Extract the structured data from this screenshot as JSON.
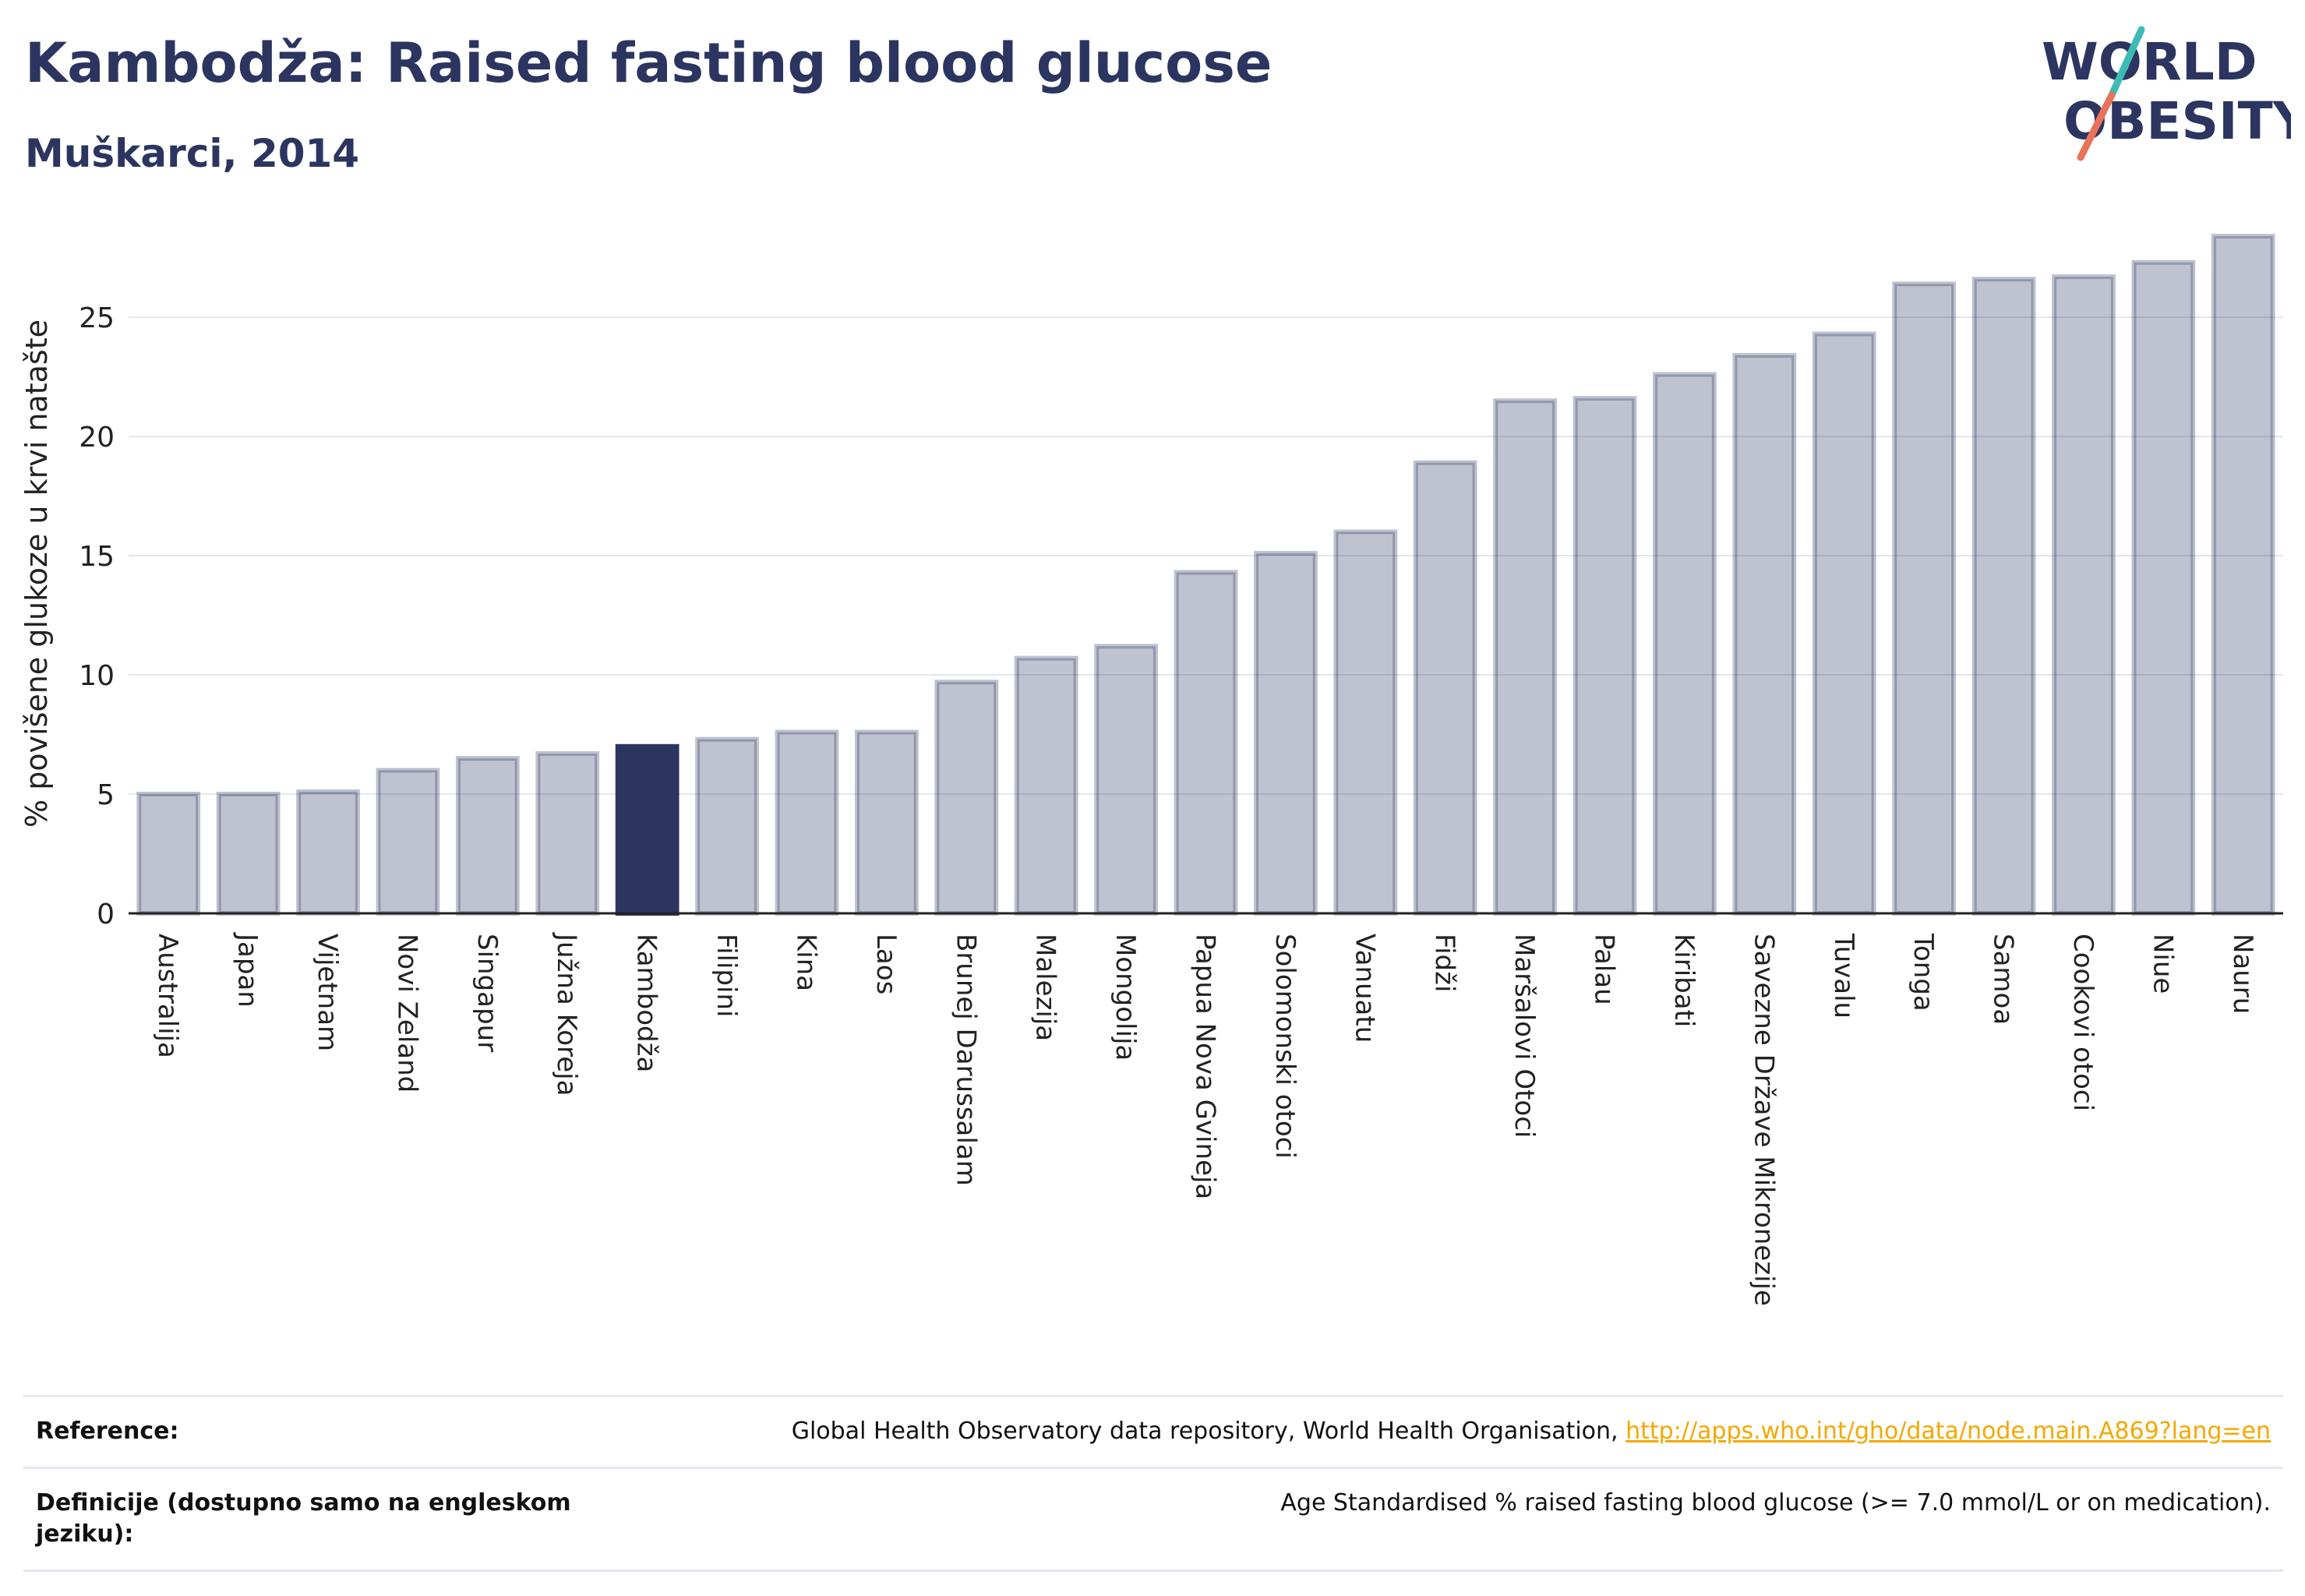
{
  "header": {
    "title": "Kambodža: Raised fasting blood glucose",
    "subtitle": "Muškarci, 2014"
  },
  "logo": {
    "line1": "WORLD",
    "line2": "OBESITY"
  },
  "chart_data": {
    "type": "bar",
    "ylabel": "% povišene glukoze u krvi natašte",
    "xlabel": "",
    "ylim": [
      0,
      28.5
    ],
    "yticks": [
      0,
      5,
      10,
      15,
      20,
      25
    ],
    "grid": true,
    "highlight": "Kambodža",
    "categories": [
      "Australija",
      "Japan",
      "Vijetnam",
      "Novi Zeland",
      "Singapur",
      "Južna Koreja",
      "Kambodža",
      "Filipini",
      "Kina",
      "Laos",
      "Brunej Darussalam",
      "Malezija",
      "Mongolija",
      "Papua Nova Gvineja",
      "Solomonski otoci",
      "Vanuatu",
      "Fidži",
      "Maršalovi Otoci",
      "Palau",
      "Kiribati",
      "Savezne Države Mikronezije",
      "Tuvalu",
      "Tonga",
      "Samoa",
      "Cookovi otoci",
      "Niue",
      "Nauru"
    ],
    "values": [
      5.0,
      5.0,
      5.1,
      6.0,
      6.5,
      6.7,
      7.0,
      7.3,
      7.6,
      7.6,
      9.7,
      10.7,
      11.2,
      14.3,
      15.1,
      16.0,
      18.9,
      21.5,
      21.6,
      22.6,
      23.4,
      24.3,
      26.4,
      26.6,
      26.7,
      27.3,
      28.4
    ],
    "colors": {
      "bar": "#2b3560",
      "highlight": "#2b3560",
      "grid": "#e6e6ee",
      "axis": "#222222"
    }
  },
  "references": [
    {
      "label": "Reference:",
      "text": "Global Health Observatory data repository, World Health Organisation,",
      "link": "http://apps.who.int/gho/data/node.main.A869?lang=en"
    },
    {
      "label": "Definicije (dostupno samo na engleskom jeziku):",
      "text": "Age Standardised % raised fasting blood glucose (>= 7.0 mmol/L or on medication).",
      "link": ""
    }
  ]
}
